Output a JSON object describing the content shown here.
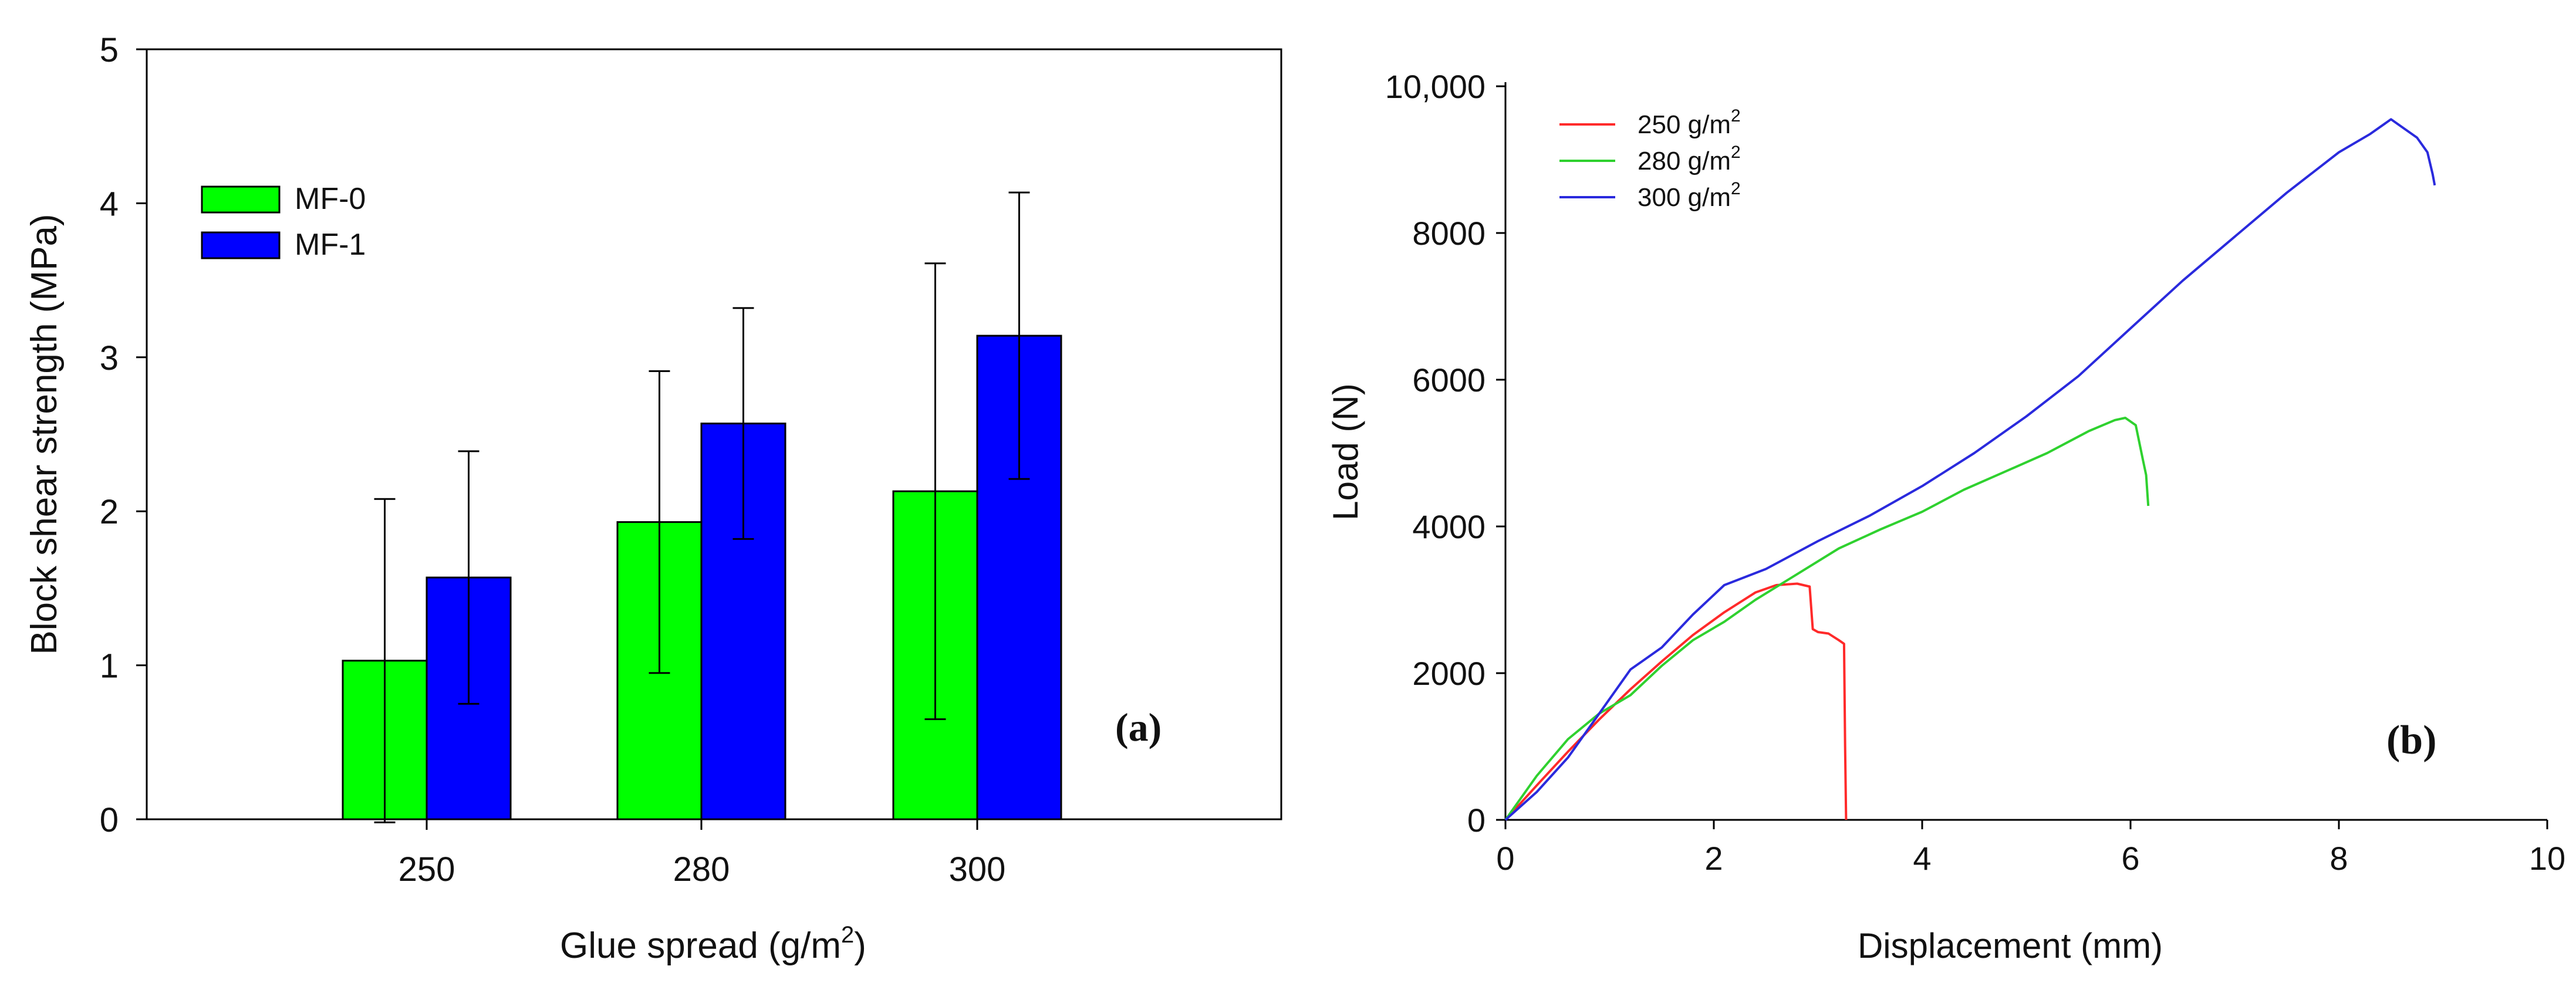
{
  "chart_data": [
    {
      "id": "a",
      "type": "bar",
      "panel_label": "(a)",
      "xlabel": "Glue spread (g/m",
      "xlabel_sup": "2",
      "xlabel_end": ")",
      "ylabel": "Block shear strength (MPa)",
      "categories": [
        "250",
        "280",
        "300"
      ],
      "ylim": [
        0,
        5
      ],
      "yticks": [
        "0",
        "1",
        "2",
        "3",
        "4",
        "5"
      ],
      "legend_position": "top-left",
      "series": [
        {
          "name": "MF-0",
          "color": "#00ff00",
          "values": [
            1.03,
            1.93,
            2.13
          ],
          "error": [
            1.05,
            0.98,
            1.48
          ]
        },
        {
          "name": "MF-1",
          "color": "#0000ff",
          "values": [
            1.57,
            2.57,
            3.14
          ],
          "error": [
            0.82,
            0.75,
            0.93
          ]
        }
      ]
    },
    {
      "id": "b",
      "type": "line",
      "panel_label": "(b)",
      "xlabel": "Displacement (mm)",
      "ylabel": "Load (N)",
      "xlim": [
        0,
        10
      ],
      "ylim": [
        0,
        10000
      ],
      "xticks": [
        "0",
        "2",
        "4",
        "6",
        "8",
        "10"
      ],
      "yticks": [
        "0",
        "2000",
        "4000",
        "6000",
        "8000",
        "10,000"
      ],
      "legend_position": "top-left",
      "series": [
        {
          "name": "250 g/m",
          "sup": "2",
          "color": "#ff2a2a",
          "x": [
            0,
            0.3,
            0.6,
            0.9,
            1.2,
            1.5,
            1.8,
            2.1,
            2.4,
            2.6,
            2.8,
            2.92,
            2.95,
            3.0,
            3.1,
            3.2,
            3.25,
            3.26,
            3.27
          ],
          "y": [
            0,
            470,
            930,
            1370,
            1780,
            2160,
            2520,
            2830,
            3100,
            3200,
            3220,
            3180,
            2600,
            2560,
            2540,
            2450,
            2400,
            1000,
            0
          ]
        },
        {
          "name": "280 g/m",
          "sup": "2",
          "color": "#2fd12f",
          "x": [
            0,
            0.3,
            0.6,
            0.9,
            1.2,
            1.5,
            1.8,
            2.1,
            2.4,
            2.8,
            3.2,
            3.6,
            4.0,
            4.4,
            4.8,
            5.2,
            5.6,
            5.85,
            5.95,
            6.05,
            6.12,
            6.15,
            6.17
          ],
          "y": [
            0,
            600,
            1100,
            1450,
            1700,
            2100,
            2450,
            2700,
            3000,
            3350,
            3700,
            3960,
            4200,
            4500,
            4750,
            5000,
            5300,
            5450,
            5480,
            5380,
            4900,
            4700,
            4280
          ]
        },
        {
          "name": "300 g/m",
          "sup": "2",
          "color": "#2a2add",
          "x": [
            0,
            0.3,
            0.6,
            0.9,
            1.2,
            1.5,
            1.8,
            2.1,
            2.5,
            3.0,
            3.5,
            4.0,
            4.5,
            5.0,
            5.5,
            6.0,
            6.5,
            7.0,
            7.5,
            8.0,
            8.3,
            8.5,
            8.6,
            8.75,
            8.85,
            8.9,
            8.92
          ],
          "y": [
            0,
            380,
            850,
            1450,
            2050,
            2350,
            2800,
            3200,
            3420,
            3800,
            4150,
            4550,
            5000,
            5500,
            6050,
            6700,
            7350,
            7950,
            8550,
            9100,
            9350,
            9550,
            9450,
            9300,
            9100,
            8800,
            8650
          ]
        }
      ]
    }
  ]
}
